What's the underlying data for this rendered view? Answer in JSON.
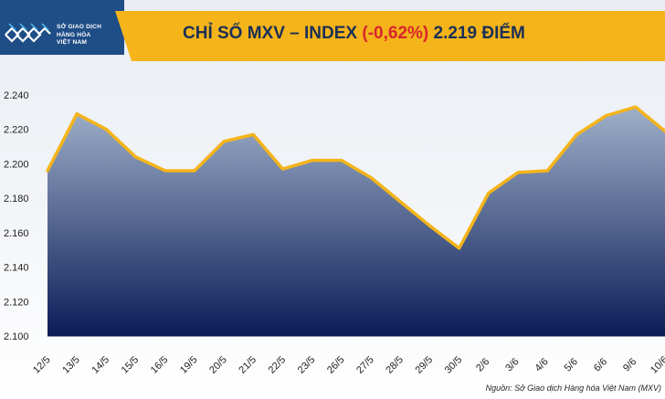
{
  "header": {
    "logo_lines": [
      "SỞ GIAO DỊCH",
      "HÀNG HÓA",
      "VIỆT NAM"
    ],
    "title_prefix": "CHỈ SỐ MXV – INDEX",
    "title_change": "(-0,62%)",
    "title_suffix": "2.219 ĐIỂM"
  },
  "source": "Nguồn: Sở Giao dịch Hàng hóa Việt Nam (MXV)",
  "colors": {
    "line": "#f4b41a",
    "area_top": "#9fb0c9",
    "area_bottom": "#0b1d58",
    "header_bar": "#f4b41a",
    "logo_bg": "#1f4d86",
    "change_text": "#d8262c"
  },
  "chart_data": {
    "type": "area",
    "categories": [
      "12/5",
      "13/5",
      "14/5",
      "15/5",
      "16/5",
      "19/5",
      "20/5",
      "21/5",
      "22/5",
      "23/5",
      "26/5",
      "27/5",
      "28/5",
      "29/5",
      "30/5",
      "2/6",
      "3/6",
      "4/6",
      "5/6",
      "6/6",
      "9/6",
      "10/6"
    ],
    "values": [
      2196,
      2229,
      2220,
      2204,
      2196,
      2196,
      2213,
      2217,
      2197,
      2202,
      2202,
      2192,
      2178,
      2164,
      2151,
      2183,
      2195,
      2196,
      2217,
      2228,
      2233,
      2219
    ],
    "yticks": [
      2100,
      2120,
      2140,
      2160,
      2180,
      2200,
      2220,
      2240
    ],
    "ytick_labels": [
      "2.100",
      "2.120",
      "2.140",
      "2.160",
      "2.180",
      "2.200",
      "2.220",
      "2.240"
    ],
    "ylim": [
      2100,
      2240
    ],
    "grid": false
  }
}
